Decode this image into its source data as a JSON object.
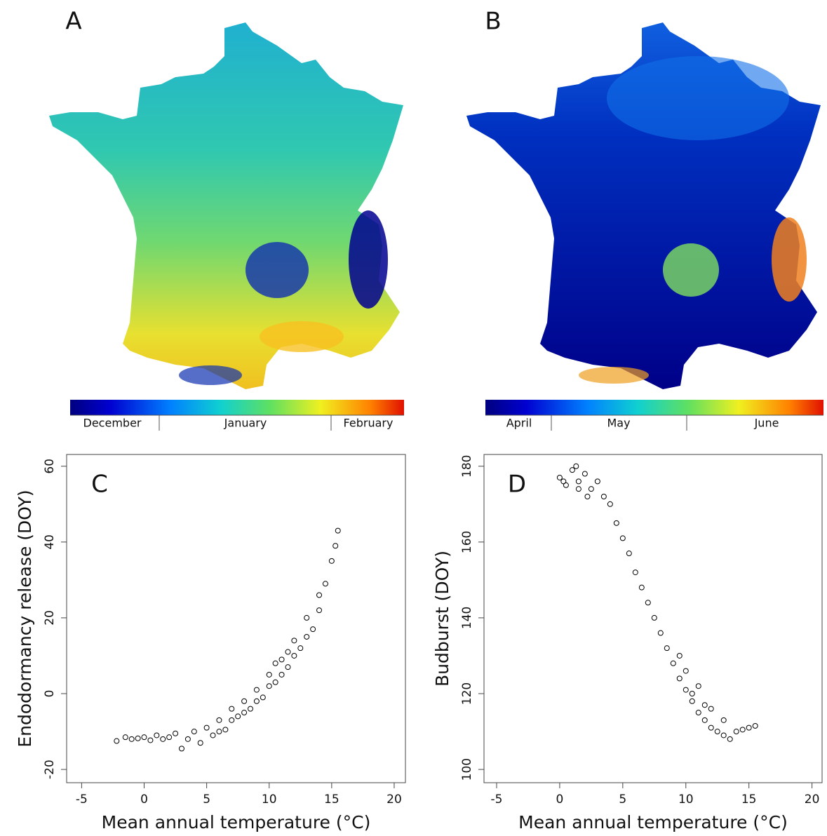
{
  "chart_data": [
    {
      "type": "map",
      "label": "A",
      "colorbar_labels": [
        "December",
        "January",
        "February"
      ]
    },
    {
      "type": "map",
      "label": "B",
      "colorbar_labels": [
        "April",
        "May",
        "June"
      ]
    },
    {
      "type": "scatter",
      "label": "C",
      "xlabel": "Mean annual temperature (°C)",
      "ylabel": "Endodormancy release (DOY)",
      "x": [
        -2.2,
        -1.5,
        -1,
        -0.5,
        0,
        0.5,
        1,
        1.5,
        2,
        2.5,
        3,
        3.5,
        4,
        4.5,
        5,
        5.5,
        6,
        6.5,
        7,
        7.5,
        8,
        8.5,
        9,
        9.5,
        10,
        10.5,
        11,
        11.5,
        12,
        12.5,
        13,
        13.5,
        14,
        14.5,
        15,
        15.3,
        15.5,
        8,
        9,
        10,
        11,
        12,
        13,
        14,
        7,
        6,
        10.5,
        11.5
      ],
      "y": [
        -12.5,
        -11.5,
        -12,
        -11.8,
        -11.5,
        -12.3,
        -11,
        -12,
        -11.5,
        -10.5,
        -14.5,
        -12,
        -10,
        -13,
        -9,
        -11,
        -7,
        -9.5,
        -4,
        -6,
        -2,
        -4,
        1,
        -1,
        5,
        3,
        9,
        7,
        14,
        12,
        20,
        17,
        26,
        29,
        35,
        39,
        43,
        -5,
        -2,
        2,
        5,
        10,
        15,
        22,
        -7,
        -10,
        8,
        11
      ],
      "xlim": [
        -6.2,
        20.9
      ],
      "ylim": [
        -23.5,
        63.1
      ],
      "xticks": [
        -5,
        0,
        5,
        10,
        15,
        20
      ],
      "yticks": [
        -20,
        0,
        20,
        40,
        60
      ],
      "color": "#000000"
    },
    {
      "type": "scatter",
      "label": "D",
      "xlabel": "Mean annual temperature (°C)",
      "ylabel": "Budburst (DOY)",
      "x": [
        0,
        0.3,
        0.5,
        1,
        1.3,
        1.5,
        2,
        2.5,
        3,
        3.5,
        4,
        4.5,
        5,
        5.5,
        6,
        6.5,
        7,
        7.5,
        8,
        8.5,
        9,
        9.5,
        10,
        10.5,
        11,
        11.5,
        12,
        12.5,
        13,
        13.5,
        14,
        14.5,
        15,
        15.5,
        10,
        11,
        12,
        13,
        9.5,
        10.5,
        11.5,
        1.5,
        2.2
      ],
      "y": [
        177,
        176,
        175,
        179,
        180,
        176,
        178,
        174,
        176,
        172,
        170,
        165,
        161,
        157,
        152,
        148,
        144,
        140,
        136,
        132,
        128,
        124,
        121,
        118,
        115,
        113,
        111,
        110,
        109,
        108,
        110,
        110.5,
        111,
        111.5,
        126,
        122,
        116,
        113,
        130,
        120,
        117,
        174,
        172
      ],
      "xlim": [
        -6.0,
        20.8
      ],
      "ylim": [
        96.5,
        183.1
      ],
      "xticks": [
        -5,
        0,
        5,
        10,
        15,
        20
      ],
      "yticks": [
        100,
        120,
        140,
        160,
        180
      ],
      "color": "#000000"
    }
  ]
}
